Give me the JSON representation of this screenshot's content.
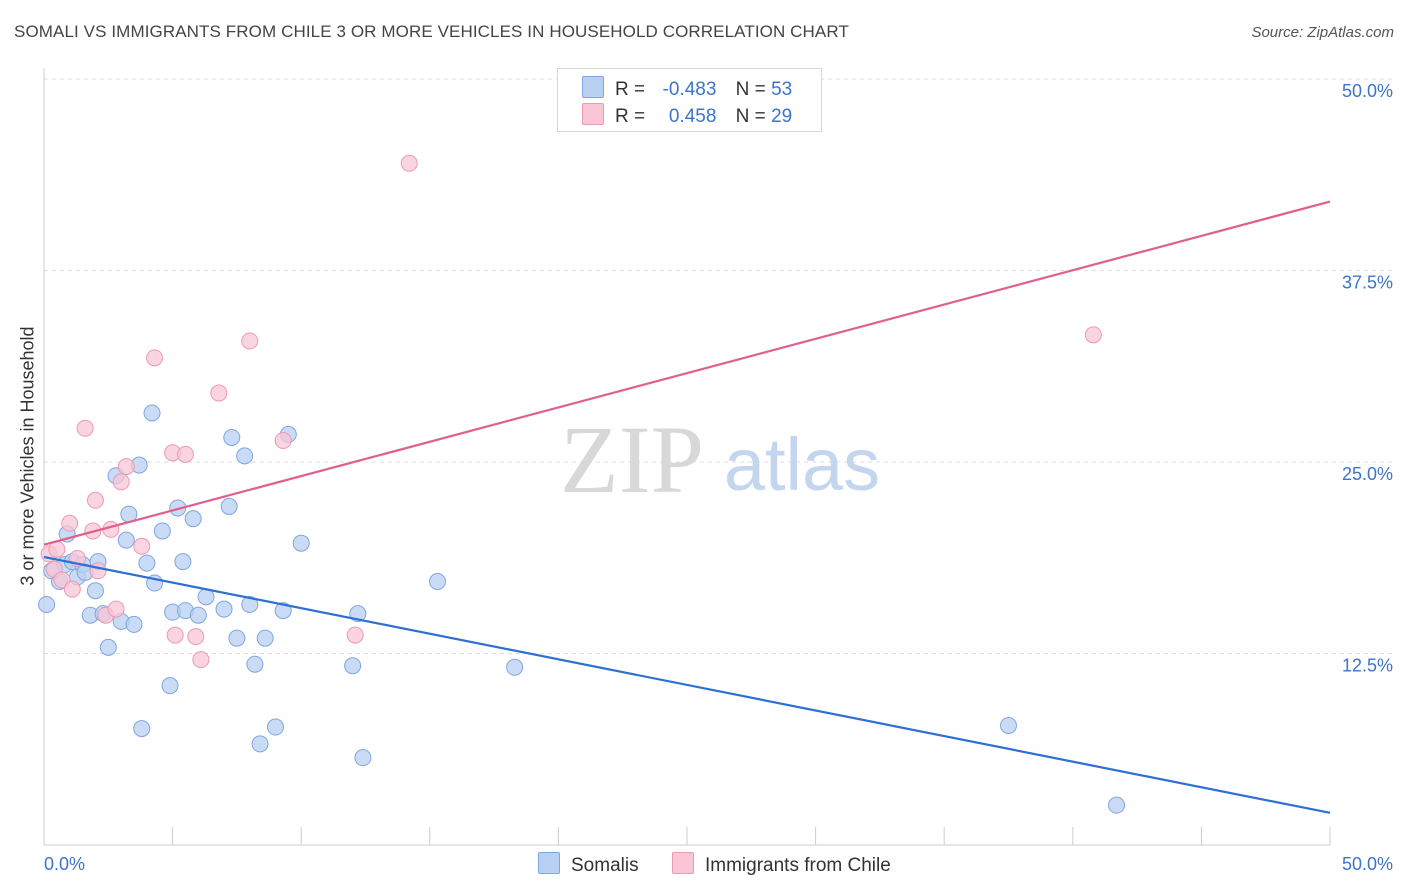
{
  "header": {
    "title": "SOMALI VS IMMIGRANTS FROM CHILE 3 OR MORE VEHICLES IN HOUSEHOLD CORRELATION CHART",
    "source": "Source: ZipAtlas.com"
  },
  "legend": {
    "rows": [
      {
        "r_label": "R =",
        "r_value": "-0.483",
        "n_label": "N =",
        "n_value": "53"
      },
      {
        "r_label": "R =",
        "r_value": "0.458",
        "n_label": "N =",
        "n_value": "29"
      }
    ],
    "bottom": [
      "Somalis",
      "Immigrants from Chile"
    ]
  },
  "watermark": {
    "part1": "ZIP",
    "part2": "atlas"
  },
  "colors": {
    "somali_fill": "#b8d0f2",
    "somali_stroke": "#7fa6df",
    "somali_line": "#2e6fd4",
    "chile_fill": "#f8c6d5",
    "chile_stroke": "#ec9ab3",
    "chile_line": "#e0608b",
    "tick_label": "#3b74cc"
  },
  "chart_data": {
    "type": "scatter",
    "title": "SOMALI VS IMMIGRANTS FROM CHILE 3 OR MORE VEHICLES IN HOUSEHOLD CORRELATION CHART",
    "xlabel": "",
    "ylabel": "3 or more Vehicles in Household",
    "xlim": [
      0,
      50
    ],
    "ylim": [
      0,
      50
    ],
    "x_tick_labels": [
      "0.0%",
      "50.0%"
    ],
    "y_ticks": [
      12.5,
      25.0,
      37.5,
      50.0
    ],
    "y_tick_labels": [
      "12.5%",
      "25.0%",
      "37.5%",
      "50.0%"
    ],
    "grid": "horizontal dashed",
    "legend_position": "top-center",
    "series": [
      {
        "name": "Somalis",
        "r": -0.483,
        "n": 53,
        "trend": [
          [
            0,
            18.8
          ],
          [
            50,
            2.1
          ]
        ],
        "points": [
          [
            0.1,
            15.7
          ],
          [
            0.3,
            17.9
          ],
          [
            0.6,
            17.2
          ],
          [
            0.8,
            18.3
          ],
          [
            0.9,
            20.3
          ],
          [
            1.1,
            18.5
          ],
          [
            1.3,
            17.5
          ],
          [
            1.5,
            18.3
          ],
          [
            1.6,
            17.8
          ],
          [
            1.8,
            15.0
          ],
          [
            2.0,
            16.6
          ],
          [
            2.1,
            18.5
          ],
          [
            2.3,
            15.1
          ],
          [
            2.5,
            12.9
          ],
          [
            2.8,
            24.1
          ],
          [
            3.0,
            14.6
          ],
          [
            3.3,
            21.6
          ],
          [
            3.2,
            19.9
          ],
          [
            3.5,
            14.4
          ],
          [
            3.7,
            24.8
          ],
          [
            3.8,
            7.6
          ],
          [
            4.0,
            18.4
          ],
          [
            4.2,
            28.2
          ],
          [
            4.3,
            17.1
          ],
          [
            4.6,
            20.5
          ],
          [
            4.9,
            10.4
          ],
          [
            5.0,
            15.2
          ],
          [
            5.2,
            22.0
          ],
          [
            5.4,
            18.5
          ],
          [
            5.5,
            15.3
          ],
          [
            5.8,
            21.3
          ],
          [
            6.0,
            15.0
          ],
          [
            6.3,
            16.2
          ],
          [
            7.0,
            15.4
          ],
          [
            7.3,
            26.6
          ],
          [
            7.2,
            22.1
          ],
          [
            7.5,
            13.5
          ],
          [
            7.8,
            25.4
          ],
          [
            8.0,
            15.7
          ],
          [
            8.2,
            11.8
          ],
          [
            8.4,
            6.6
          ],
          [
            8.6,
            13.5
          ],
          [
            9.0,
            7.7
          ],
          [
            9.3,
            15.3
          ],
          [
            9.5,
            26.8
          ],
          [
            10.0,
            19.7
          ],
          [
            12.0,
            11.7
          ],
          [
            12.2,
            15.1
          ],
          [
            12.4,
            5.7
          ],
          [
            15.3,
            17.2
          ],
          [
            18.3,
            11.6
          ],
          [
            37.5,
            7.8
          ],
          [
            41.7,
            2.6
          ]
        ]
      },
      {
        "name": "Immigrants from Chile",
        "r": 0.458,
        "n": 29,
        "trend": [
          [
            0,
            19.6
          ],
          [
            50,
            42.0
          ]
        ],
        "points": [
          [
            0.2,
            19.0
          ],
          [
            0.4,
            18.0
          ],
          [
            0.5,
            19.3
          ],
          [
            0.7,
            17.3
          ],
          [
            1.0,
            21.0
          ],
          [
            1.1,
            16.7
          ],
          [
            1.3,
            18.7
          ],
          [
            1.6,
            27.2
          ],
          [
            1.9,
            20.5
          ],
          [
            2.0,
            22.5
          ],
          [
            2.1,
            17.9
          ],
          [
            2.4,
            15.0
          ],
          [
            2.6,
            20.6
          ],
          [
            2.8,
            15.4
          ],
          [
            3.0,
            23.7
          ],
          [
            3.2,
            24.7
          ],
          [
            3.8,
            19.5
          ],
          [
            4.3,
            31.8
          ],
          [
            5.0,
            25.6
          ],
          [
            5.1,
            13.7
          ],
          [
            5.5,
            25.5
          ],
          [
            5.9,
            13.6
          ],
          [
            6.1,
            12.1
          ],
          [
            6.8,
            29.5
          ],
          [
            8.0,
            32.9
          ],
          [
            9.3,
            26.4
          ],
          [
            12.1,
            13.7
          ],
          [
            14.2,
            44.5
          ],
          [
            40.8,
            33.3
          ]
        ]
      }
    ]
  }
}
